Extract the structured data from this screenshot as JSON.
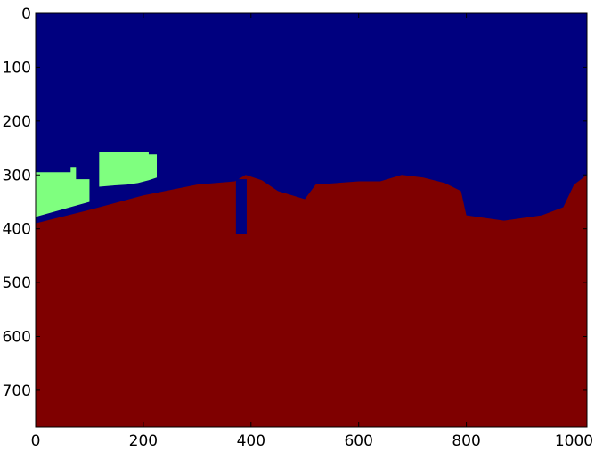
{
  "chart_data": {
    "type": "heatmap",
    "title": "",
    "xlabel": "",
    "ylabel": "",
    "xlim": [
      0,
      1024
    ],
    "ylim": [
      768,
      0
    ],
    "xticks": [
      0,
      200,
      400,
      600,
      800,
      1000
    ],
    "yticks": [
      0,
      100,
      200,
      300,
      400,
      500,
      600,
      700
    ],
    "colormap": "jet",
    "grid": false,
    "legend": "none",
    "colors": {
      "sky": "#00007f",
      "ground": "#7f0000",
      "buildings": "#7fff7f",
      "pole": "#00007f"
    },
    "regions": [
      {
        "name": "sky",
        "polygon": [
          [
            0,
            0
          ],
          [
            1024,
            0
          ],
          [
            1024,
            768
          ],
          [
            0,
            768
          ]
        ]
      },
      {
        "name": "buildings",
        "polygon": [
          [
            0,
            295
          ],
          [
            65,
            295
          ],
          [
            65,
            285
          ],
          [
            75,
            285
          ],
          [
            75,
            308
          ],
          [
            100,
            308
          ],
          [
            100,
            350
          ],
          [
            10,
            375
          ],
          [
            0,
            378
          ]
        ]
      },
      {
        "name": "buildings",
        "polygon": [
          [
            118,
            258
          ],
          [
            210,
            258
          ],
          [
            210,
            262
          ],
          [
            225,
            262
          ],
          [
            225,
            305
          ],
          [
            210,
            310
          ],
          [
            190,
            315
          ],
          [
            170,
            318
          ],
          [
            140,
            320
          ],
          [
            118,
            322
          ]
        ]
      },
      {
        "name": "ground",
        "polygon": [
          [
            0,
            390
          ],
          [
            100,
            365
          ],
          [
            200,
            338
          ],
          [
            300,
            318
          ],
          [
            370,
            312
          ],
          [
            390,
            300
          ],
          [
            420,
            310
          ],
          [
            450,
            330
          ],
          [
            500,
            345
          ],
          [
            520,
            318
          ],
          [
            560,
            315
          ],
          [
            600,
            312
          ],
          [
            640,
            312
          ],
          [
            680,
            300
          ],
          [
            720,
            305
          ],
          [
            760,
            315
          ],
          [
            790,
            330
          ],
          [
            800,
            375
          ],
          [
            870,
            385
          ],
          [
            940,
            375
          ],
          [
            980,
            360
          ],
          [
            1000,
            318
          ],
          [
            1024,
            300
          ],
          [
            1024,
            768
          ],
          [
            0,
            768
          ]
        ]
      },
      {
        "name": "pole",
        "polygon": [
          [
            372,
            308
          ],
          [
            392,
            308
          ],
          [
            392,
            410
          ],
          [
            372,
            410
          ]
        ]
      }
    ]
  }
}
